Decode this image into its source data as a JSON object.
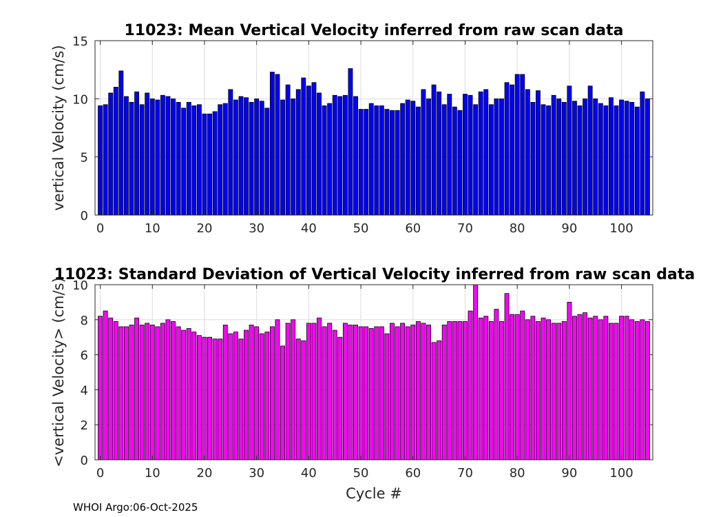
{
  "footer": "WHOI Argo:06-Oct-2025",
  "chart_data": [
    {
      "type": "bar",
      "title": "11023: Mean Vertical Velocity inferred from raw scan data",
      "xlabel": "",
      "ylabel": "vertical Velocity (cm/s)",
      "xlim": [
        -1,
        106
      ],
      "ylim": [
        0,
        15
      ],
      "xticks": [
        0,
        10,
        20,
        30,
        40,
        50,
        60,
        70,
        80,
        90,
        100
      ],
      "yticks": [
        0,
        5,
        10,
        15
      ],
      "grid": true,
      "color": "#0000ff",
      "x": [
        0,
        1,
        2,
        3,
        4,
        5,
        6,
        7,
        8,
        9,
        10,
        11,
        12,
        13,
        14,
        15,
        16,
        17,
        18,
        19,
        20,
        21,
        22,
        23,
        24,
        25,
        26,
        27,
        28,
        29,
        30,
        31,
        32,
        33,
        34,
        35,
        36,
        37,
        38,
        39,
        40,
        41,
        42,
        43,
        44,
        45,
        46,
        47,
        48,
        49,
        50,
        51,
        52,
        53,
        54,
        55,
        56,
        57,
        58,
        59,
        60,
        61,
        62,
        63,
        64,
        65,
        66,
        67,
        68,
        69,
        70,
        71,
        72,
        73,
        74,
        75,
        76,
        77,
        78,
        79,
        80,
        81,
        82,
        83,
        84,
        85,
        86,
        87,
        88,
        89,
        90,
        91,
        92,
        93,
        94,
        95,
        96,
        97,
        98,
        99,
        100,
        101,
        102,
        103,
        104,
        105
      ],
      "values": [
        9.4,
        9.5,
        10.5,
        11.0,
        12.4,
        10.2,
        9.7,
        10.6,
        9.5,
        10.5,
        10.0,
        9.9,
        10.3,
        10.2,
        10.0,
        9.7,
        9.2,
        9.7,
        9.4,
        9.5,
        8.7,
        8.7,
        8.9,
        9.5,
        9.6,
        10.8,
        9.9,
        10.2,
        10.1,
        9.7,
        10.0,
        9.8,
        9.2,
        12.3,
        12.1,
        9.9,
        11.2,
        10.0,
        10.8,
        11.8,
        11.1,
        11.4,
        10.5,
        9.4,
        9.6,
        10.3,
        10.2,
        10.3,
        12.6,
        10.2,
        9.1,
        9.1,
        9.6,
        9.4,
        9.4,
        9.1,
        9.0,
        9.0,
        9.6,
        9.9,
        9.8,
        9.3,
        10.8,
        10.0,
        11.2,
        10.6,
        9.5,
        10.4,
        9.3,
        9.0,
        10.4,
        10.3,
        9.5,
        10.6,
        10.8,
        9.5,
        10.0,
        10.0,
        11.4,
        11.2,
        12.1,
        12.1,
        10.8,
        9.7,
        10.7,
        9.5,
        9.4,
        10.3,
        10.0,
        9.7,
        11.1,
        9.8,
        9.4,
        10.0,
        11.1,
        10.0,
        9.6,
        9.4,
        10.1,
        9.4,
        9.9,
        9.8,
        9.7,
        9.3,
        10.6,
        10.0
      ]
    },
    {
      "type": "bar",
      "title": "11023: Standard Deviation of Vertical Velocity inferred from raw scan data",
      "xlabel": "Cycle #",
      "ylabel": "<vertical Velocity> (cm/s)",
      "xlim": [
        -1,
        106
      ],
      "ylim": [
        0,
        10
      ],
      "xticks": [
        0,
        10,
        20,
        30,
        40,
        50,
        60,
        70,
        80,
        90,
        100
      ],
      "yticks": [
        0,
        2,
        4,
        6,
        8,
        10
      ],
      "grid": true,
      "color": "#ff00ff",
      "x": [
        0,
        1,
        2,
        3,
        4,
        5,
        6,
        7,
        8,
        9,
        10,
        11,
        12,
        13,
        14,
        15,
        16,
        17,
        18,
        19,
        20,
        21,
        22,
        23,
        24,
        25,
        26,
        27,
        28,
        29,
        30,
        31,
        32,
        33,
        34,
        35,
        36,
        37,
        38,
        39,
        40,
        41,
        42,
        43,
        44,
        45,
        46,
        47,
        48,
        49,
        50,
        51,
        52,
        53,
        54,
        55,
        56,
        57,
        58,
        59,
        60,
        61,
        62,
        63,
        64,
        65,
        66,
        67,
        68,
        69,
        70,
        71,
        72,
        73,
        74,
        75,
        76,
        77,
        78,
        79,
        80,
        81,
        82,
        83,
        84,
        85,
        86,
        87,
        88,
        89,
        90,
        91,
        92,
        93,
        94,
        95,
        96,
        97,
        98,
        99,
        100,
        101,
        102,
        103,
        104,
        105
      ],
      "values": [
        8.2,
        8.5,
        8.1,
        7.9,
        7.6,
        7.6,
        7.7,
        8.1,
        7.7,
        7.8,
        7.7,
        7.6,
        7.8,
        8.0,
        7.9,
        7.6,
        7.4,
        7.5,
        7.3,
        7.1,
        7.0,
        7.0,
        6.9,
        6.9,
        7.7,
        7.2,
        7.3,
        6.9,
        7.4,
        7.7,
        7.6,
        7.2,
        7.3,
        7.6,
        8.0,
        6.5,
        7.8,
        8.0,
        6.9,
        6.8,
        7.8,
        7.8,
        8.1,
        7.6,
        7.8,
        7.4,
        7.0,
        7.8,
        7.7,
        7.7,
        7.6,
        7.6,
        7.5,
        7.6,
        7.6,
        7.2,
        7.8,
        7.6,
        7.8,
        7.6,
        7.7,
        7.9,
        7.8,
        7.7,
        6.7,
        6.8,
        7.7,
        7.9,
        7.9,
        7.9,
        7.9,
        8.5,
        10.0,
        8.1,
        8.2,
        7.9,
        8.6,
        7.9,
        9.5,
        8.3,
        8.3,
        8.5,
        8.0,
        8.2,
        7.9,
        8.1,
        8.0,
        7.8,
        7.8,
        7.9,
        9.0,
        8.2,
        8.3,
        8.4,
        8.1,
        8.2,
        8.0,
        8.2,
        7.8,
        7.8,
        8.2,
        8.2,
        8.0,
        7.9,
        8.0,
        7.9
      ]
    }
  ]
}
